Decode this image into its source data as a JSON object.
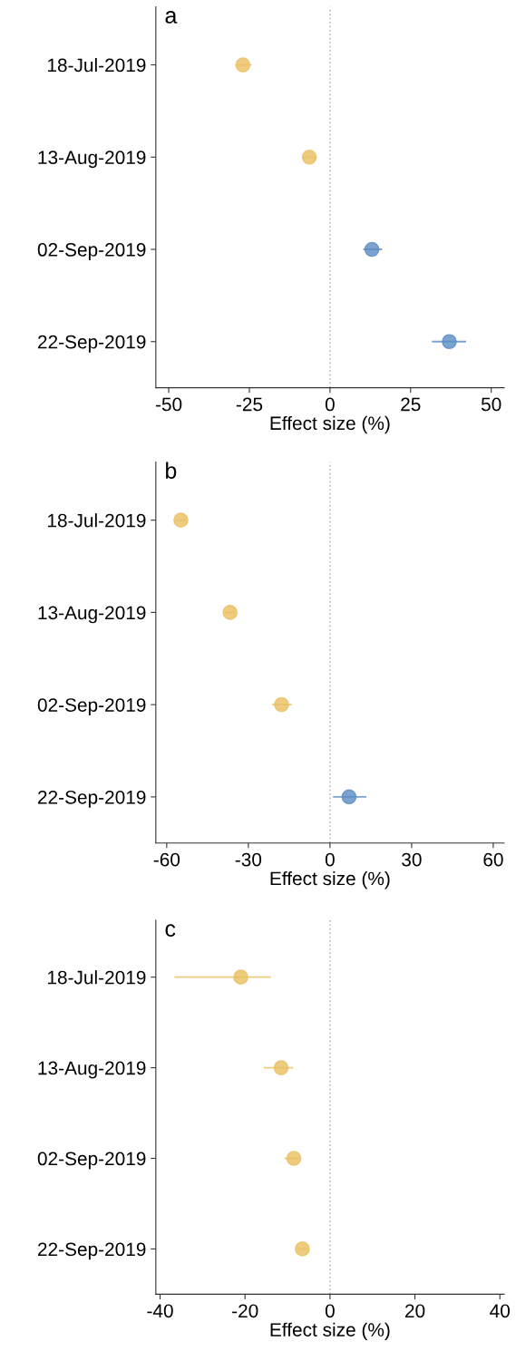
{
  "chart_data": [
    {
      "type": "scatter",
      "orientation": "horizontal",
      "title": "a",
      "xlabel": "Effect size (%)",
      "categories": [
        "18-Jul-2019",
        "13-Aug-2019",
        "02-Sep-2019",
        "22-Sep-2019"
      ],
      "values": [
        -27,
        -6.4,
        13,
        37
      ],
      "colors": [
        "#e8bf60",
        "#e8bf60",
        "#5b8cc4",
        "#5b8cc4"
      ],
      "errors": [
        [
          -29.3,
          -24.3
        ],
        [
          -8.7,
          -4.2
        ],
        [
          10.3,
          16.2
        ],
        [
          31.6,
          42.2
        ]
      ],
      "xlim": [
        -54,
        54
      ],
      "xticks": [
        -50,
        -25,
        0,
        25,
        50
      ],
      "marker": "circle",
      "grid": false,
      "ref_lines": [
        {
          "axis": "x",
          "value": 0,
          "color": "#bbbbbb",
          "line_style": "dotted"
        }
      ]
    },
    {
      "type": "scatter",
      "orientation": "horizontal",
      "title": "b",
      "xlabel": "Effect size (%)",
      "categories": [
        "18-Jul-2019",
        "13-Aug-2019",
        "02-Sep-2019",
        "22-Sep-2019"
      ],
      "values": [
        -54.8,
        -36.7,
        -17.8,
        7
      ],
      "colors": [
        "#e8bf60",
        "#e8bf60",
        "#e8bf60",
        "#5b8cc4"
      ],
      "errors": [
        [
          -56.5,
          -53
        ],
        [
          -38.5,
          -35
        ],
        [
          -21.3,
          -14
        ],
        [
          1.1,
          13.4
        ]
      ],
      "xlim": [
        -64,
        64
      ],
      "xticks": [
        -60,
        -30,
        0,
        30,
        60
      ],
      "marker": "circle",
      "grid": false,
      "ref_lines": [
        {
          "axis": "x",
          "value": 0,
          "color": "#bbbbbb",
          "line_style": "dotted"
        }
      ]
    },
    {
      "type": "scatter",
      "orientation": "horizontal",
      "title": "c",
      "xlabel": "Effect size (%)",
      "categories": [
        "18-Jul-2019",
        "13-Aug-2019",
        "02-Sep-2019",
        "22-Sep-2019"
      ],
      "values": [
        -21,
        -11.5,
        -8.5,
        -6.5
      ],
      "colors": [
        "#e8bf60",
        "#e8bf60",
        "#e8bf60",
        "#e8bf60"
      ],
      "errors": [
        [
          -36.6,
          -13.9
        ],
        [
          -15.6,
          -8.7
        ],
        [
          -10.7,
          -7.2
        ],
        [
          -7.5,
          -5.5
        ]
      ],
      "xlim": [
        -41,
        41
      ],
      "xticks": [
        -40,
        -20,
        0,
        20,
        40
      ],
      "marker": "circle",
      "grid": false,
      "ref_lines": [
        {
          "axis": "x",
          "value": 0,
          "color": "#bbbbbb",
          "line_style": "dotted"
        }
      ]
    }
  ]
}
